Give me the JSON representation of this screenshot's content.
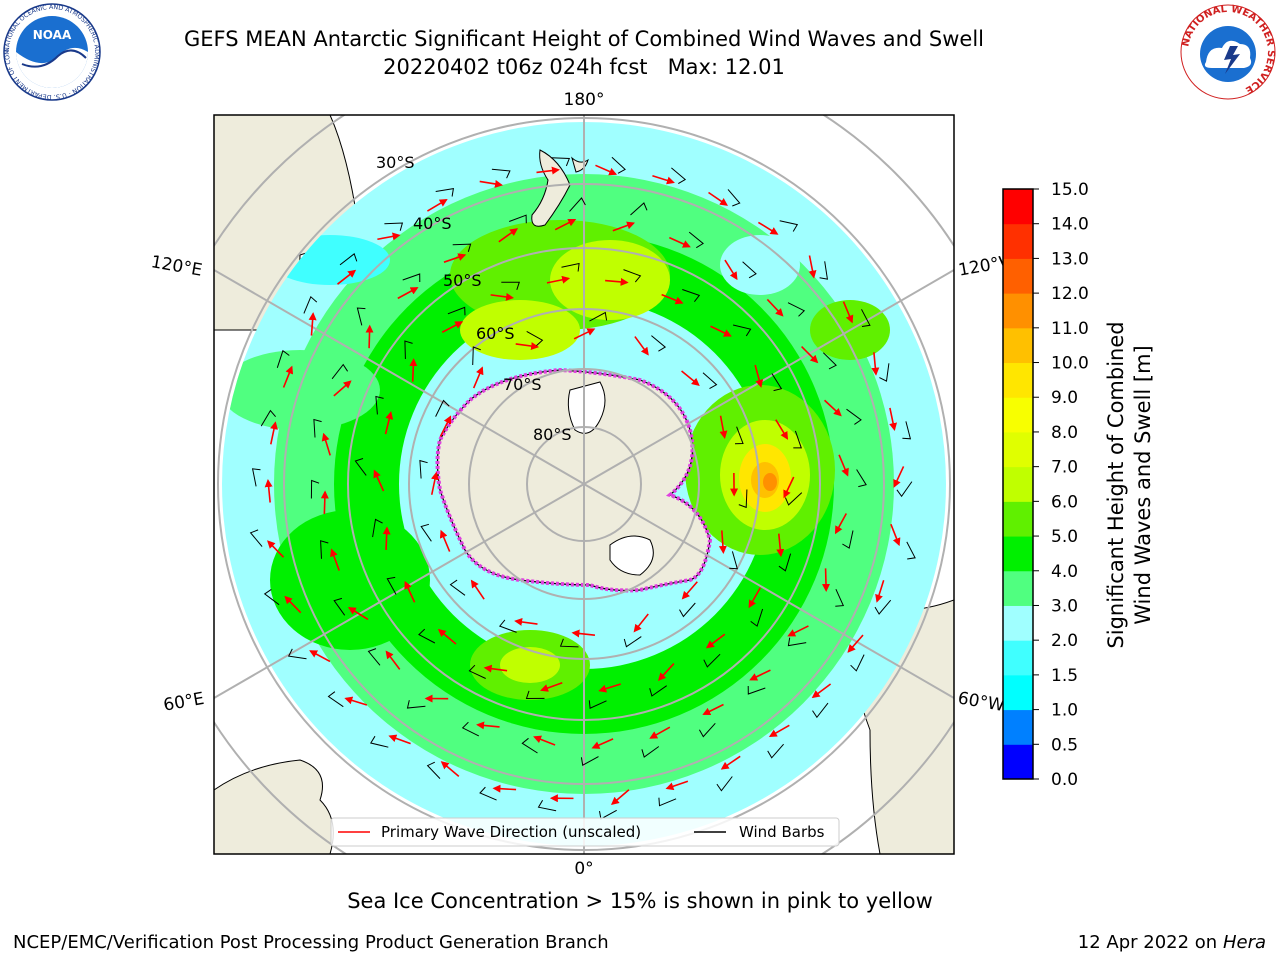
{
  "title": {
    "line1": "GEFS MEAN Antarctic Significant Height of Combined Wind Waves and Swell",
    "line2": "20220402 t06z 024h fcst   Max: 12.01"
  },
  "logos": {
    "left": "NOAA",
    "left_ring": "NATIONAL OCEANIC AND ATMOSPHERIC ADMINISTRATION · U.S. DEPARTMENT OF COMMERCE",
    "right": "NATIONAL WEATHER SERVICE"
  },
  "map": {
    "projection": "south-polar-stereographic",
    "longitude_labels": [
      "180°",
      "0°",
      "120°E",
      "120°W",
      "60°E",
      "60°W"
    ],
    "latitude_labels": [
      "30°S",
      "40°S",
      "50°S",
      "60°S",
      "70°S",
      "80°S"
    ],
    "legend": {
      "primary_wave_label": "Primary Wave Direction (unscaled)",
      "wind_barbs_label": "Wind Barbs"
    },
    "colors": {
      "land": "#eeecdc",
      "ice": "#ffffff",
      "ice_edge": "#e040e0",
      "arrow": "#ff0000",
      "barb": "#000000"
    }
  },
  "colorbar": {
    "label_line1": "Significant Height of Combined",
    "label_line2": "Wind Waves and Swell [m]",
    "ticks": [
      "0.0",
      "0.5",
      "1.0",
      "1.5",
      "2.0",
      "3.0",
      "4.0",
      "5.0",
      "6.0",
      "7.0",
      "8.0",
      "9.0",
      "10.0",
      "11.0",
      "12.0",
      "13.0",
      "14.0",
      "15.0"
    ],
    "colors": [
      "#0000ff",
      "#0080ff",
      "#00ffff",
      "#40ffff",
      "#a0ffff",
      "#50ff80",
      "#00f000",
      "#60f000",
      "#c0ff00",
      "#e0ff00",
      "#f8ff00",
      "#ffe600",
      "#ffc000",
      "#ff9000",
      "#ff6000",
      "#ff3000",
      "#ff0000"
    ]
  },
  "caption": "Sea Ice Concentration > 15% is shown in pink to yellow",
  "footer": {
    "left": "NCEP/EMC/Verification Post Processing Product Generation Branch",
    "right_date": "12 Apr 2022 on",
    "right_host": "Hera"
  }
}
